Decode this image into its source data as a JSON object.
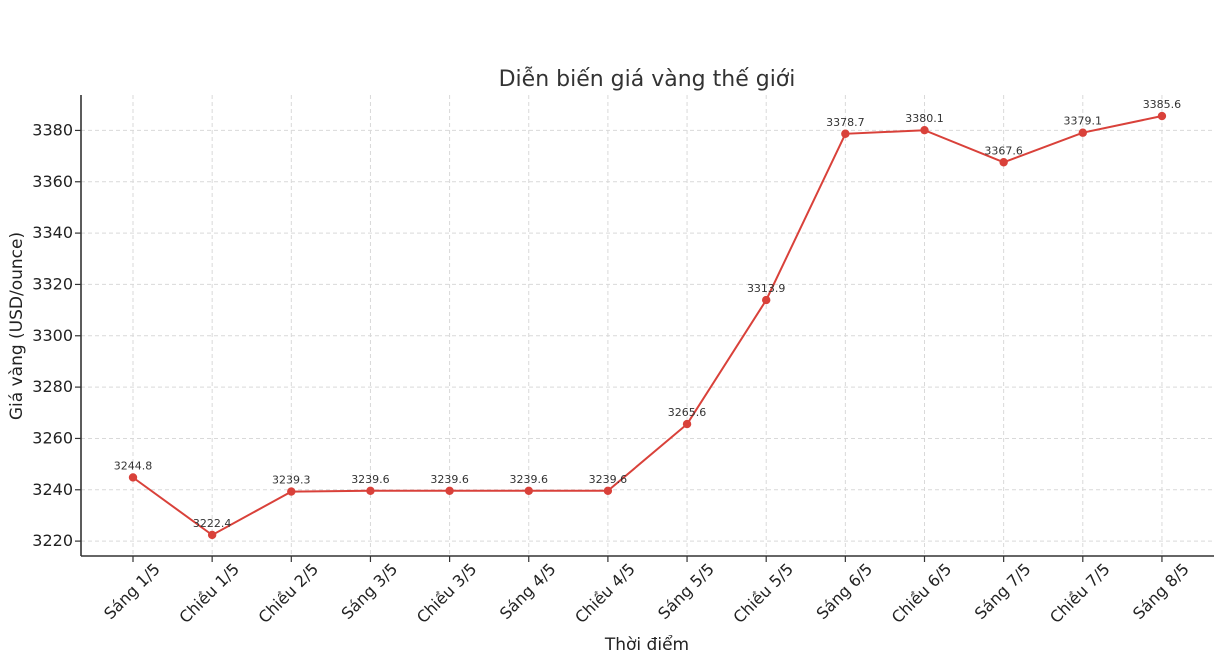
{
  "colors": {
    "line": "#d9413a",
    "grid": "#d9d9d9",
    "axis": "#333333"
  },
  "chart_data": {
    "type": "line",
    "title": "Diễn biến giá vàng thế giới",
    "xlabel": "Thời điểm",
    "ylabel": "Giá vàng (USD/ounce)",
    "categories": [
      "Sáng 1/5",
      "Chiều 1/5",
      "Chiều 2/5",
      "Sáng 3/5",
      "Chiều 3/5",
      "Sáng 4/5",
      "Chiều 4/5",
      "Sáng 5/5",
      "Chiều 5/5",
      "Sáng 6/5",
      "Chiều 6/5",
      "Sáng 7/5",
      "Chiều 7/5",
      "Sáng 8/5"
    ],
    "values": [
      3244.8,
      3222.4,
      3239.3,
      3239.6,
      3239.6,
      3239.6,
      3239.6,
      3265.6,
      3313.9,
      3378.7,
      3380.1,
      3367.6,
      3379.1,
      3385.6
    ],
    "data_labels": [
      "3244.8",
      "3222.4",
      "3239.3",
      "3239.6",
      "3239.6",
      "3239.6",
      "3239.6",
      "3265.6",
      "3313.9",
      "3378.7",
      "3380.1",
      "3367.6",
      "3379.1",
      "3385.6"
    ],
    "yticks": [
      3220,
      3240,
      3260,
      3280,
      3300,
      3320,
      3340,
      3360,
      3380
    ],
    "ylim": [
      3214.2,
      3393.8
    ],
    "grid": true,
    "markers": "circle"
  }
}
